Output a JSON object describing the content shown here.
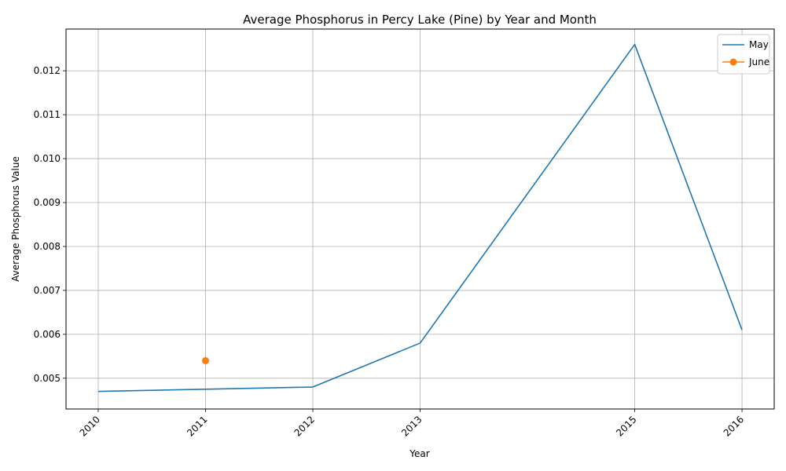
{
  "chart_data": {
    "type": "line",
    "title": "Average Phosphorus in Percy Lake (Pine) by Year and Month",
    "xlabel": "Year",
    "ylabel": "Average Phosphorus Value",
    "x_ticks": [
      2010,
      2011,
      2012,
      2013,
      2015,
      2016
    ],
    "y_ticks": [
      0.005,
      0.006,
      0.007,
      0.008,
      0.009,
      0.01,
      0.011,
      0.012
    ],
    "y_tick_labels": [
      "0.005",
      "0.006",
      "0.007",
      "0.008",
      "0.009",
      "0.010",
      "0.011",
      "0.012"
    ],
    "xlim": [
      2009.7,
      2016.3
    ],
    "ylim": [
      0.0043,
      0.01295
    ],
    "grid": true,
    "legend_position": "top-right",
    "series": [
      {
        "name": "May",
        "color": "#1f77b4",
        "marker": "none",
        "x": [
          2010,
          2011,
          2012,
          2013,
          2015,
          2016
        ],
        "y": [
          0.0047,
          0.00475,
          0.0048,
          0.0058,
          0.0126,
          0.0061
        ]
      },
      {
        "name": "June",
        "color": "#ff7f0e",
        "marker": "circle",
        "x": [
          2011
        ],
        "y": [
          0.0054
        ]
      }
    ]
  }
}
